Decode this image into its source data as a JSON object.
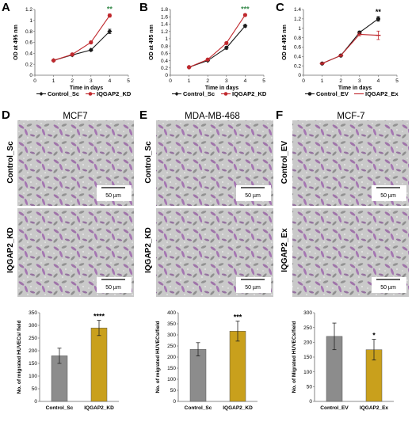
{
  "panels": {
    "A": "A",
    "B": "B",
    "C": "C",
    "D": "D",
    "E": "E",
    "F": "F"
  },
  "cell_lines": {
    "D": "MCF7",
    "E": "MDA-MB-468",
    "F": "MCF-7"
  },
  "image_row_labels": {
    "D": [
      "Control_Sc",
      "IQGAP2_KD"
    ],
    "E": [
      "Control_Sc",
      "IQGAP2_KD"
    ],
    "F": [
      "Control_EV",
      "IQGAP2_Ex"
    ]
  },
  "scale_bar_label": "50 µm",
  "colors": {
    "control_line": "#1a1a1a",
    "treatment_line_AB": "#c0282d",
    "treatment_line_C": "#c0282d",
    "bar_control": "#8c8c8c",
    "bar_treatment": "#c9a01c",
    "micrograph_bg": "#c9c9c9",
    "cell_stain": "#7b2d8e",
    "significance": "#3a8c4e"
  },
  "chart_data": [
    {
      "id": "A",
      "type": "line",
      "xlabel": "Time in days",
      "ylabel": "OD at 495 nm",
      "xlim": [
        0,
        5
      ],
      "ylim": [
        0,
        1.2
      ],
      "xticks": [
        0,
        1,
        2,
        3,
        4,
        5
      ],
      "yticks": [
        0,
        0.2,
        0.4,
        0.6,
        0.8,
        1,
        1.2
      ],
      "ytick_labels": [
        "0",
        "0.2",
        "0.4",
        "0.6",
        "0.8",
        "1",
        "1.2"
      ],
      "x": [
        1,
        2,
        3,
        4
      ],
      "significance": "**",
      "series": [
        {
          "name": "Control_Sc",
          "marker": "diamond",
          "values": [
            0.27,
            0.37,
            0.46,
            0.8
          ],
          "errors": [
            0.02,
            0.02,
            0.02,
            0.04
          ]
        },
        {
          "name": "IQGAP2_KD",
          "marker": "circle",
          "values": [
            0.27,
            0.38,
            0.6,
            1.09
          ],
          "errors": [
            0.02,
            0.02,
            0.02,
            0.03
          ]
        }
      ],
      "legend": "bottom"
    },
    {
      "id": "B",
      "type": "line",
      "xlabel": "Time in days",
      "ylabel": "OD at 495 nm",
      "xlim": [
        0,
        5
      ],
      "ylim": [
        0,
        1.8
      ],
      "xticks": [
        0,
        1,
        2,
        3,
        4,
        5
      ],
      "yticks": [
        0,
        0.2,
        0.4,
        0.6,
        0.8,
        1,
        1.2,
        1.4,
        1.6,
        1.8
      ],
      "ytick_labels": [
        "0",
        "0.2",
        "0.4",
        "0.6",
        "0.8",
        "1",
        "1.2",
        "1.4",
        "1.6",
        "1.8"
      ],
      "x": [
        1,
        2,
        3,
        4
      ],
      "significance": "***",
      "series": [
        {
          "name": "Control_Sc",
          "marker": "diamond",
          "values": [
            0.22,
            0.4,
            0.75,
            1.35
          ],
          "errors": [
            0.02,
            0.02,
            0.04,
            0.04
          ]
        },
        {
          "name": "IQGAP2_KD",
          "marker": "circle",
          "values": [
            0.22,
            0.43,
            0.88,
            1.65
          ],
          "errors": [
            0.02,
            0.02,
            0.03,
            0.03
          ]
        }
      ],
      "legend": "bottom"
    },
    {
      "id": "C",
      "type": "line",
      "xlabel": "Time in days",
      "ylabel": "OD at 495 nm",
      "xlim": [
        0,
        5
      ],
      "ylim": [
        0,
        1.4
      ],
      "xticks": [
        0,
        1,
        2,
        3,
        4,
        5
      ],
      "yticks": [
        0,
        0.2,
        0.4,
        0.6,
        0.8,
        1,
        1.2,
        1.4
      ],
      "ytick_labels": [
        "0",
        "0.2",
        "0.4",
        "0.6",
        "0.8",
        "1",
        "1.2",
        "1.4"
      ],
      "x": [
        1,
        2,
        3,
        4
      ],
      "significance": "**",
      "series": [
        {
          "name": "Control_EV",
          "marker": "circle",
          "values": [
            0.25,
            0.42,
            0.91,
            1.2
          ],
          "errors": [
            0.02,
            0.02,
            0.03,
            0.05
          ]
        },
        {
          "name": "IQGAP2_Ex",
          "marker": "dash",
          "values": [
            0.25,
            0.42,
            0.87,
            0.85
          ],
          "errors": [
            0.02,
            0.02,
            0.03,
            0.09
          ]
        }
      ],
      "legend": "bottom"
    },
    {
      "id": "D",
      "type": "bar",
      "ylabel": "No. of migrated HUVECs/ field",
      "ylim": [
        0,
        350
      ],
      "yticks": [
        0,
        50,
        100,
        150,
        200,
        250,
        300,
        350
      ],
      "categories": [
        "Control_Sc",
        "IQGAP2_KD"
      ],
      "values": [
        180,
        290
      ],
      "errors": [
        30,
        30
      ],
      "significance": "****"
    },
    {
      "id": "E",
      "type": "bar",
      "ylabel": "No. of migrated HUVECs/field",
      "ylim": [
        0,
        400
      ],
      "yticks": [
        0,
        50,
        100,
        150,
        200,
        250,
        300,
        350,
        400
      ],
      "categories": [
        "Control_Sc",
        "IQGAP2_KD"
      ],
      "values": [
        235,
        317
      ],
      "errors": [
        30,
        45
      ],
      "significance": "***"
    },
    {
      "id": "F",
      "type": "bar",
      "ylabel": "No. of Migrated HUVECs/field",
      "ylim": [
        0,
        300
      ],
      "yticks": [
        0,
        50,
        100,
        150,
        200,
        250,
        300
      ],
      "categories": [
        "Control_EV",
        "IQGAP2_Ex"
      ],
      "values": [
        220,
        175
      ],
      "errors": [
        45,
        35
      ],
      "significance": "*"
    }
  ]
}
